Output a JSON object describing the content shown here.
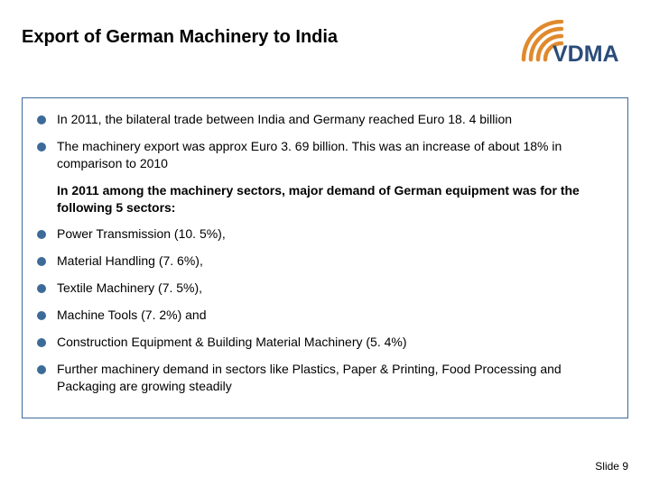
{
  "title": "Export of German Machinery to India",
  "logo": {
    "text": "VDMA",
    "arc_color": "#e08a2e",
    "text_color": "#2b4c7a"
  },
  "content": {
    "box_border_color": "#3d6b99",
    "bullet_color": "#3d6b99",
    "text_color": "#000000",
    "fontsize": 14,
    "items": [
      {
        "text": "In 2011, the bilateral trade between India and Germany reached Euro 18. 4 billion",
        "bullet": true,
        "bold": false
      },
      {
        "text": "The machinery export was approx Euro 3. 69 billion. This was an increase of about 18% in comparison to 2010",
        "bullet": true,
        "bold": false
      },
      {
        "text": "In 2011 among the machinery sectors, major demand of German equipment was for the following 5 sectors:",
        "bullet": false,
        "bold": true,
        "indent": true
      },
      {
        "text": "Power Transmission (10. 5%),",
        "bullet": true,
        "bold": false
      },
      {
        "text": "Material Handling (7. 6%),",
        "bullet": true,
        "bold": false
      },
      {
        "text": "Textile Machinery (7. 5%),",
        "bullet": true,
        "bold": false
      },
      {
        "text": "Machine Tools (7. 2%) and",
        "bullet": true,
        "bold": false
      },
      {
        "text": "Construction Equipment & Building Material Machinery (5. 4%)",
        "bullet": true,
        "bold": false
      },
      {
        "text": "Further machinery demand in sectors like Plastics, Paper & Printing, Food Processing and Packaging  are growing steadily",
        "bullet": true,
        "bold": false
      }
    ]
  },
  "footer": "Slide 9"
}
